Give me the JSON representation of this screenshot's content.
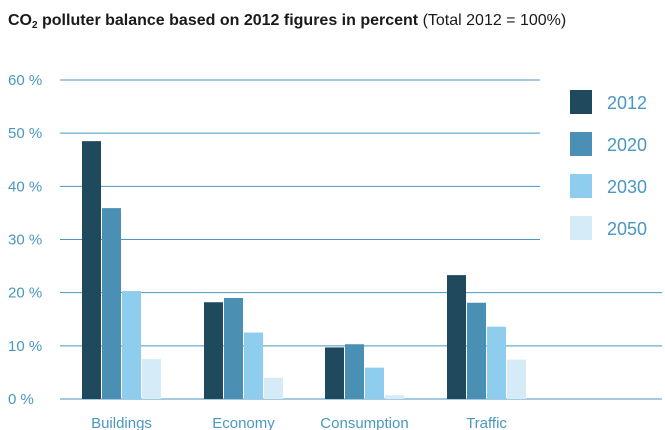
{
  "title": {
    "prefix": "CO",
    "subscript": "2",
    "bold_rest": " polluter balance based on 2012 figures in percent",
    "normal_rest": " (Total 2012 = 100%)"
  },
  "chart_data": {
    "type": "bar",
    "categories": [
      "Buildings",
      "Economy",
      "Consumption",
      "Traffic"
    ],
    "series": [
      {
        "name": "2012",
        "color": "#1f4a5e",
        "values": [
          48.5,
          18.2,
          9.7,
          23.3
        ]
      },
      {
        "name": "2020",
        "color": "#4a90b5",
        "values": [
          35.9,
          19.0,
          10.3,
          18.1
        ]
      },
      {
        "name": "2030",
        "color": "#8fcdee",
        "values": [
          20.3,
          12.5,
          5.9,
          13.6
        ]
      },
      {
        "name": "2050",
        "color": "#d6ebf8",
        "values": [
          7.5,
          4.0,
          0.7,
          7.4
        ]
      }
    ],
    "y_ticks": [
      "0 %",
      "10 %",
      "20 %",
      "30 %",
      "40 %",
      "50 %",
      "60 %"
    ],
    "ylim": [
      0,
      60
    ],
    "grid": true,
    "legend_position": "right"
  }
}
